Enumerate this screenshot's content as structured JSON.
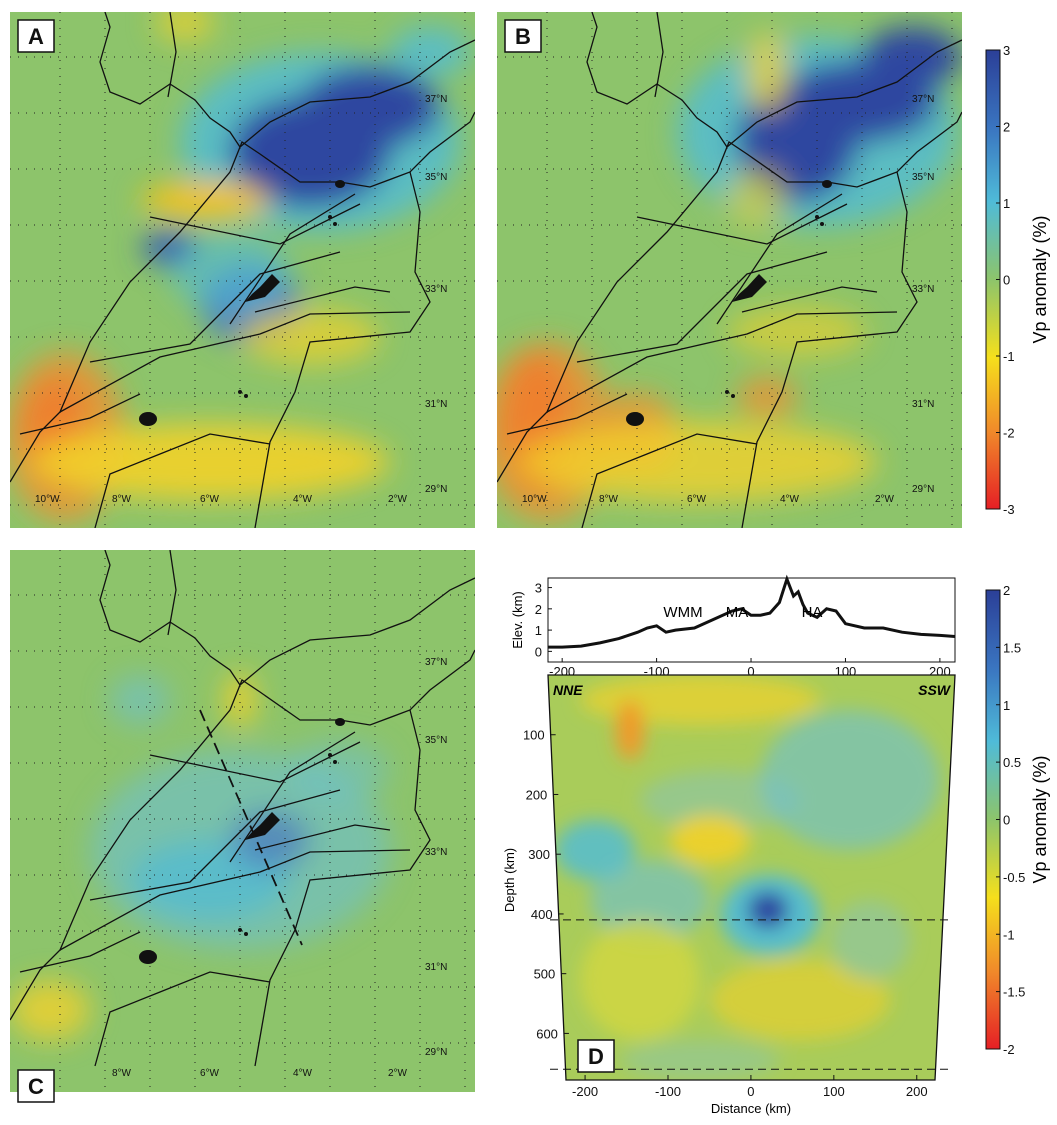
{
  "maps": [
    {
      "label": "A",
      "lat_labels": [
        "37°N",
        "35°N",
        "33°N",
        "31°N",
        "29°N"
      ],
      "lon_labels": [
        "10°W",
        "8°W",
        "6°W",
        "4°W",
        "2°W"
      ]
    },
    {
      "label": "B",
      "lat_labels": [
        "37°N",
        "35°N",
        "33°N",
        "31°N",
        "29°N"
      ],
      "lon_labels": [
        "10°W",
        "8°W",
        "6°W",
        "4°W",
        "2°W"
      ]
    },
    {
      "label": "C",
      "lat_labels": [
        "37°N",
        "35°N",
        "33°N",
        "31°N",
        "29°N"
      ],
      "lon_labels": [
        "8°W",
        "6°W",
        "4°W",
        "2°W"
      ]
    }
  ],
  "colorbar_top": {
    "label": "Vp anomaly (%)",
    "lim": [
      -3,
      3
    ],
    "ticks": [
      3,
      2,
      1,
      0,
      -1,
      -2,
      -3
    ]
  },
  "colorbar_bottom": {
    "label": "Vp anomaly (%)",
    "lim": [
      -2,
      2
    ],
    "ticks": [
      2,
      1.5,
      1,
      0.5,
      0,
      -0.5,
      -1,
      -1.5,
      -2
    ]
  },
  "panel_d": {
    "label": "D",
    "profile": {
      "ylabel": "Elev. (km)",
      "annotations": [
        "WMM",
        "MA",
        "HA"
      ],
      "xlim": [
        -215,
        216
      ],
      "ylim": [
        -0.5,
        3.45
      ],
      "xticks": [
        -200,
        -100,
        0,
        100,
        200
      ],
      "yticks": [
        0,
        1,
        2,
        3
      ],
      "x": [
        -215,
        -200,
        -180,
        -160,
        -140,
        -120,
        -110,
        -100,
        -90,
        -80,
        -60,
        -40,
        -20,
        -10,
        0,
        10,
        20,
        30,
        38,
        45,
        50,
        55,
        60,
        70,
        80,
        90,
        100,
        120,
        140,
        160,
        180,
        200,
        216
      ],
      "values": [
        0.2,
        0.2,
        0.25,
        0.4,
        0.6,
        0.9,
        1.1,
        1.2,
        0.9,
        1.0,
        1.1,
        1.5,
        1.9,
        2.0,
        1.7,
        1.7,
        1.8,
        2.3,
        3.4,
        2.6,
        2.8,
        2.2,
        1.8,
        1.6,
        2.0,
        1.9,
        1.3,
        1.1,
        1.1,
        0.9,
        0.8,
        0.75,
        0.7
      ]
    },
    "section": {
      "xlabel": "Distance (km)",
      "ylabel": "Depth (km)",
      "left": "NNE",
      "right": "SSW",
      "xlim": [
        -223,
        222
      ],
      "ylim": [
        0,
        678
      ],
      "xticks": [
        -200,
        -100,
        0,
        100,
        200
      ],
      "yticks": [
        100,
        200,
        300,
        400,
        500,
        600
      ],
      "discontinuities": [
        410,
        660
      ]
    }
  }
}
